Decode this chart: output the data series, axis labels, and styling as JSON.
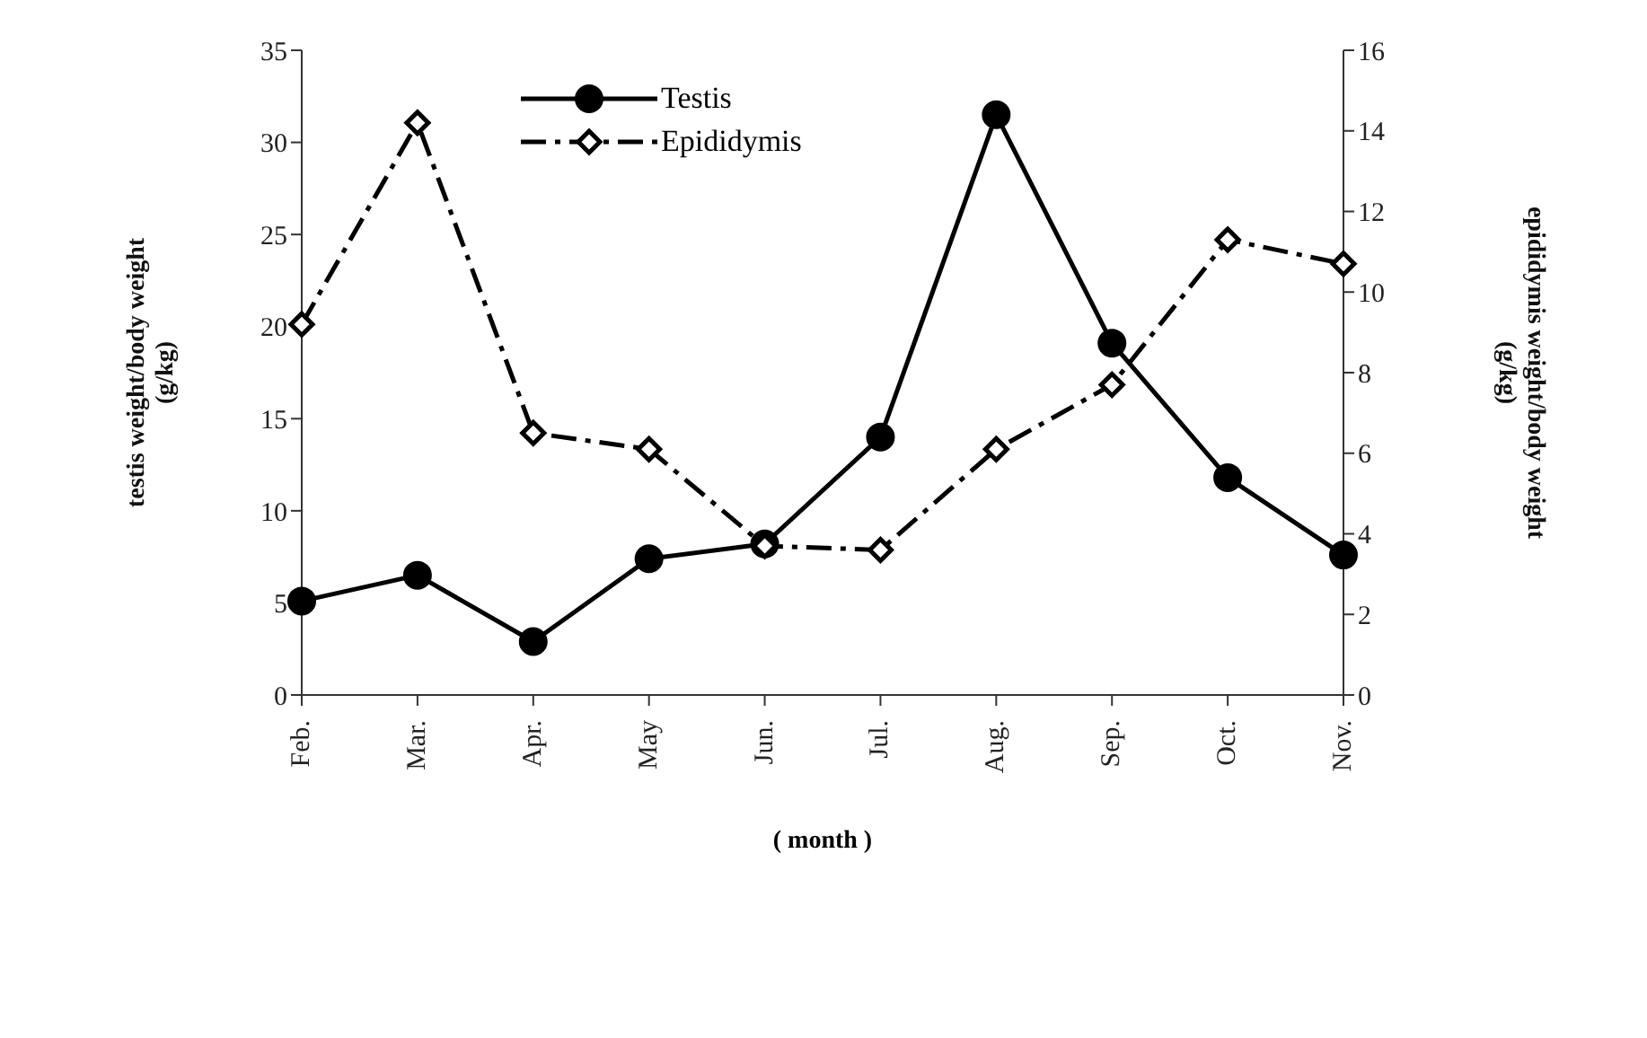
{
  "chart_data": {
    "type": "line",
    "xlabel": "( month )",
    "ylabel": "testis weight/body weight\n(g/kg)",
    "y2label": "epididymis weight/body weight\n(g/kg)",
    "categories": [
      "Feb.",
      "Mar.",
      "Apr.",
      "May",
      "Jun.",
      "Jul.",
      "Aug.",
      "Sep.",
      "Oct.",
      "Nov."
    ],
    "series": [
      {
        "name": "Testis",
        "color": "#000000",
        "marker": "circle",
        "line_style": "solid",
        "values": [
          5.1,
          6.5,
          2.9,
          7.4,
          8.2,
          14.0,
          31.5,
          19.1,
          11.8,
          7.6
        ]
      },
      {
        "name": "Epididymis",
        "color": "#000000",
        "marker": "diamond",
        "line_style": "dashed",
        "axis": "y2",
        "values": [
          9.2,
          14.2,
          6.5,
          6.1,
          3.7,
          3.6,
          6.1,
          7.7,
          11.3,
          10.7
        ]
      }
    ],
    "ylim": [
      0,
      35
    ],
    "yticks": [
      0,
      5,
      10,
      15,
      20,
      25,
      30,
      35
    ],
    "y2lim": [
      0,
      16
    ],
    "y2ticks": [
      0,
      2,
      4,
      6,
      8,
      10,
      12,
      14,
      16
    ],
    "grid": false,
    "legend": "top"
  }
}
